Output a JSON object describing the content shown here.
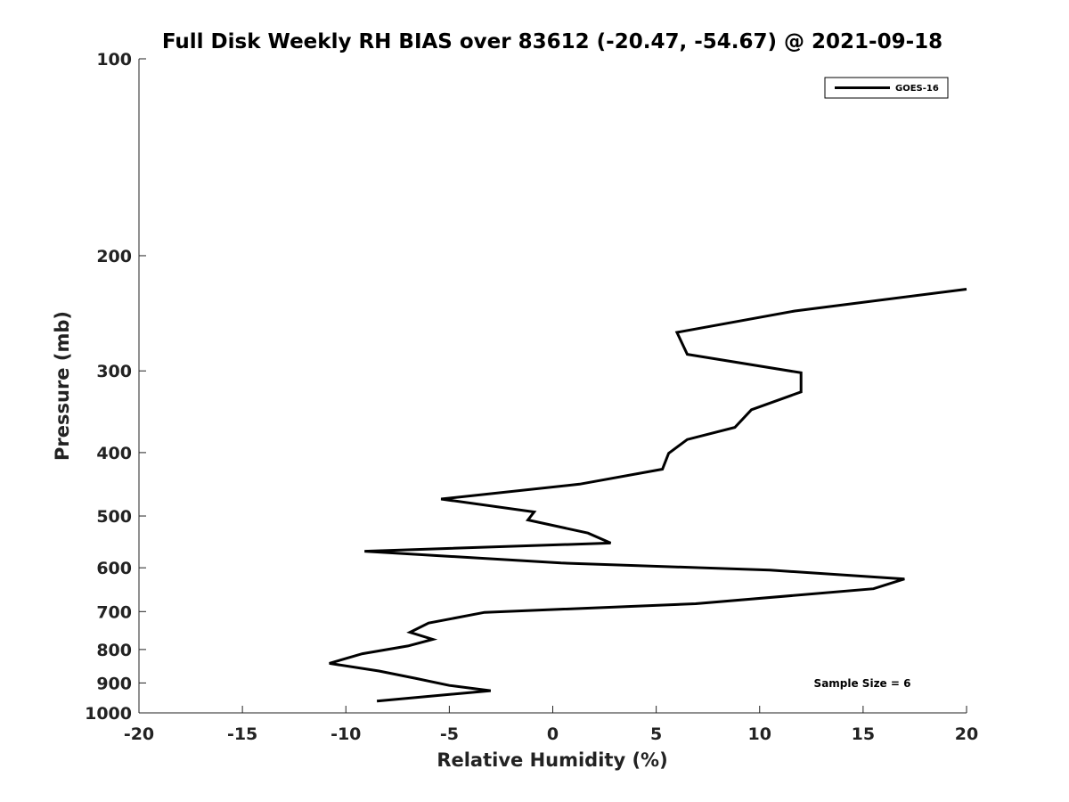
{
  "chart_data": {
    "type": "line",
    "title": "Full Disk Weekly RH BIAS over 83612 (-20.47, -54.67) @ 2021-09-18",
    "xlabel": "Relative Humidity (%)",
    "ylabel": "Pressure (mb)",
    "xlim": [
      -20,
      20
    ],
    "ylim": [
      100,
      1000
    ],
    "yscale": "log",
    "yreversed": true,
    "x_ticks": [
      -20,
      -15,
      -10,
      -5,
      0,
      5,
      10,
      15,
      20
    ],
    "x_tick_labels": [
      "-20",
      "-15",
      "-10",
      "-5",
      "0",
      "5",
      "10",
      "15",
      "20"
    ],
    "y_ticks": [
      100,
      200,
      300,
      400,
      500,
      600,
      700,
      800,
      900,
      1000
    ],
    "y_tick_labels": [
      "100",
      "200",
      "300",
      "400",
      "500",
      "600",
      "700",
      "800",
      "900",
      "1000"
    ],
    "grid": false,
    "legend_position": "top-right",
    "annotation": "Sample Size = 6",
    "series": [
      {
        "name": "GOES-16",
        "color": "#000000",
        "points": [
          [
            20.0,
            225
          ],
          [
            11.7,
            243
          ],
          [
            6.0,
            262
          ],
          [
            6.5,
            283
          ],
          [
            12.0,
            302
          ],
          [
            12.0,
            323
          ],
          [
            9.6,
            344
          ],
          [
            8.8,
            366
          ],
          [
            6.5,
            382
          ],
          [
            5.6,
            401
          ],
          [
            5.3,
            424
          ],
          [
            1.3,
            447
          ],
          [
            -5.4,
            471
          ],
          [
            -0.9,
            493
          ],
          [
            -1.2,
            507
          ],
          [
            1.7,
            531
          ],
          [
            2.8,
            550
          ],
          [
            -9.1,
            566
          ],
          [
            0.4,
            590
          ],
          [
            10.5,
            605
          ],
          [
            17.0,
            624
          ],
          [
            15.5,
            646
          ],
          [
            6.9,
            681
          ],
          [
            -3.3,
            702
          ],
          [
            -6.0,
            729
          ],
          [
            -6.9,
            753
          ],
          [
            -5.8,
            772
          ],
          [
            -7.0,
            790
          ],
          [
            -9.2,
            812
          ],
          [
            -10.8,
            840
          ],
          [
            -8.4,
            863
          ],
          [
            -6.6,
            886
          ],
          [
            -5.0,
            908
          ],
          [
            -3.0,
            925
          ],
          [
            -8.5,
            959
          ]
        ]
      }
    ]
  }
}
